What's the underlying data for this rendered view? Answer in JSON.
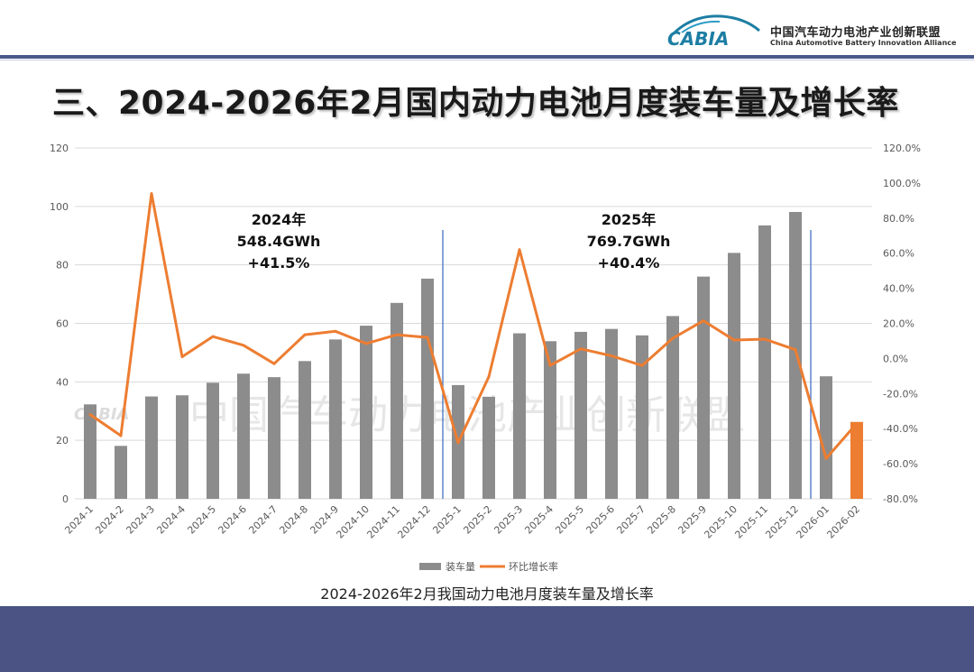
{
  "header": {
    "logo_text": "CABIA",
    "org_name_cn": "中国汽车动力电池产业创新联盟",
    "org_name_en": "China Automotive Battery Innovation Alliance"
  },
  "page_title": "三、2024-2026年2月国内动力电池月度装车量及增长率",
  "caption": "2024-2026年2月我国动力电池月度装车量及增长率",
  "watermark": "中国汽车动力电池产业创新联盟",
  "annotations": [
    {
      "year": "2024年",
      "total": "548.4GWh",
      "growth": "+41.5%"
    },
    {
      "year": "2025年",
      "total": "769.7GWh",
      "growth": "+40.4%"
    }
  ],
  "colors": {
    "bar": "#8c8c8c",
    "highlight_bar": "#ed7d31",
    "line": "#ed7d31",
    "divider": "#4472c4",
    "footer": "#4a5384"
  },
  "chart_data": {
    "type": "bar",
    "title": "2024-2026年2月我国动力电池月度装车量及增长率",
    "categories": [
      "2024-1",
      "2024-2",
      "2024-3",
      "2024-4",
      "2024-5",
      "2024-6",
      "2024-7",
      "2024-8",
      "2024-9",
      "2024-10",
      "2024-11",
      "2024-12",
      "2025-1",
      "2025-2",
      "2025-3",
      "2025-4",
      "2025-5",
      "2025-6",
      "2025-7",
      "2025-8",
      "2025-9",
      "2025-10",
      "2025-11",
      "2025-12",
      "2026-01",
      "2026-02"
    ],
    "series": [
      {
        "name": "装车量",
        "type": "bar",
        "axis": "left",
        "values": [
          32.3,
          18.1,
          35.0,
          35.4,
          39.7,
          42.8,
          41.6,
          47.1,
          54.5,
          59.2,
          67.0,
          75.3,
          38.9,
          34.9,
          56.6,
          53.9,
          57.1,
          58.1,
          55.9,
          62.5,
          76.0,
          84.1,
          93.5,
          98.1,
          41.9,
          26.3
        ],
        "highlight_index": 25
      },
      {
        "name": "环比增长率",
        "type": "line",
        "axis": "right",
        "values": [
          -32.0,
          -44.0,
          94.0,
          1.0,
          12.5,
          7.5,
          -3.0,
          13.5,
          15.5,
          8.5,
          13.5,
          12.0,
          -48.0,
          -10.5,
          62.0,
          -4.0,
          5.5,
          1.5,
          -4.0,
          11.5,
          21.5,
          10.5,
          11.0,
          5.0,
          -57.0,
          -37.0
        ]
      }
    ],
    "y_left": {
      "min": 0,
      "max": 120,
      "step": 20,
      "ticks": [
        "0",
        "20",
        "40",
        "60",
        "80",
        "100",
        "120"
      ]
    },
    "y_right": {
      "min": -80,
      "max": 120,
      "step": 20,
      "ticks": [
        "-80.0%",
        "-60.0%",
        "-40.0%",
        "-20.0%",
        "0.0%",
        "20.0%",
        "40.0%",
        "60.0%",
        "80.0%",
        "100.0%",
        "120.0%"
      ]
    },
    "legend": {
      "position": "bottom",
      "items": [
        "装车量",
        "环比增长率"
      ]
    },
    "dividers_after_index": [
      11,
      23
    ]
  }
}
